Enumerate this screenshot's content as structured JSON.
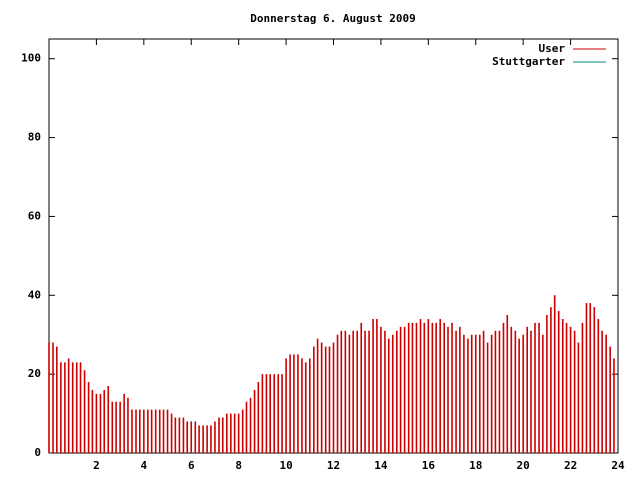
{
  "chart_data": {
    "type": "impulse",
    "title": "Donnerstag 6. August 2009",
    "x": [
      0,
      0.17,
      0.33,
      0.5,
      0.67,
      0.83,
      1,
      1.17,
      1.33,
      1.5,
      1.67,
      1.83,
      2,
      2.17,
      2.33,
      2.5,
      2.67,
      2.83,
      3,
      3.17,
      3.33,
      3.5,
      3.67,
      3.83,
      4,
      4.17,
      4.33,
      4.5,
      4.67,
      4.83,
      5,
      5.17,
      5.33,
      5.5,
      5.67,
      5.83,
      6,
      6.17,
      6.33,
      6.5,
      6.67,
      6.83,
      7,
      7.17,
      7.33,
      7.5,
      7.67,
      7.83,
      8,
      8.17,
      8.33,
      8.5,
      8.67,
      8.83,
      9,
      9.17,
      9.33,
      9.5,
      9.67,
      9.83,
      10,
      10.17,
      10.33,
      10.5,
      10.67,
      10.83,
      11,
      11.17,
      11.33,
      11.5,
      11.67,
      11.83,
      12,
      12.17,
      12.33,
      12.5,
      12.67,
      12.83,
      13,
      13.17,
      13.33,
      13.5,
      13.67,
      13.83,
      14,
      14.17,
      14.33,
      14.5,
      14.67,
      14.83,
      15,
      15.17,
      15.33,
      15.5,
      15.67,
      15.83,
      16,
      16.17,
      16.33,
      16.5,
      16.67,
      16.83,
      17,
      17.17,
      17.33,
      17.5,
      17.67,
      17.83,
      18,
      18.17,
      18.33,
      18.5,
      18.67,
      18.83,
      19,
      19.17,
      19.33,
      19.5,
      19.67,
      19.83,
      20,
      20.17,
      20.33,
      20.5,
      20.67,
      20.83,
      21,
      21.17,
      21.33,
      21.5,
      21.67,
      21.83,
      22,
      22.17,
      22.33,
      22.5,
      22.67,
      22.83,
      23,
      23.17,
      23.33,
      23.5,
      23.67,
      23.83
    ],
    "series": [
      {
        "name": "User",
        "color": "#cc0000",
        "values": [
          28,
          28,
          27,
          23,
          23,
          24,
          23,
          23,
          23,
          21,
          18,
          16,
          15,
          15,
          16,
          17,
          13,
          13,
          13,
          15,
          14,
          11,
          11,
          11,
          11,
          11,
          11,
          11,
          11,
          11,
          11,
          10,
          9,
          9,
          9,
          8,
          8,
          8,
          7,
          7,
          7,
          7,
          8,
          9,
          9,
          10,
          10,
          10,
          10,
          11,
          13,
          14,
          16,
          18,
          20,
          20,
          20,
          20,
          20,
          20,
          24,
          25,
          25,
          25,
          24,
          23,
          24,
          27,
          29,
          28,
          27,
          27,
          28,
          30,
          31,
          31,
          30,
          31,
          31,
          33,
          31,
          31,
          34,
          34,
          32,
          31,
          29,
          30,
          31,
          32,
          32,
          33,
          33,
          33,
          34,
          33,
          34,
          33,
          33,
          34,
          33,
          32,
          33,
          31,
          32,
          30,
          29,
          30,
          30,
          30,
          31,
          28,
          30,
          31,
          31,
          33,
          35,
          32,
          31,
          29,
          30,
          32,
          31,
          33,
          33,
          30,
          35,
          37,
          40,
          36,
          34,
          33,
          32,
          31,
          28,
          33,
          38,
          38,
          37,
          34,
          31,
          30,
          27,
          24
        ]
      },
      {
        "name": "Stuttgarter",
        "color": "#008b8b",
        "values": [
          null,
          null,
          null,
          null,
          null,
          null,
          null,
          null,
          null,
          null,
          null,
          null,
          null,
          null,
          null,
          null,
          null,
          null,
          null,
          null,
          null,
          null,
          null,
          null,
          null,
          null,
          null,
          null,
          null,
          null,
          null,
          null,
          null,
          null,
          null,
          null,
          null,
          null,
          null,
          null,
          null,
          null,
          null,
          null,
          null,
          null,
          null,
          null,
          null,
          null,
          null,
          null,
          null,
          null,
          null,
          null,
          null,
          null,
          null,
          null,
          null,
          null,
          null,
          null,
          null,
          null,
          null,
          null,
          null,
          null,
          null,
          null,
          null,
          null,
          null,
          null,
          null,
          null,
          null,
          null,
          null,
          null,
          null,
          null,
          null,
          null,
          null,
          null,
          null,
          null,
          null,
          null,
          null,
          null,
          null,
          null,
          null,
          null,
          null,
          null,
          null,
          null,
          null,
          null,
          null,
          null,
          null,
          null,
          null,
          null,
          null,
          null,
          null,
          null,
          null,
          null,
          null,
          null,
          null,
          null,
          null,
          null,
          null,
          null,
          null,
          null,
          null,
          null,
          null,
          null,
          null,
          null,
          null,
          null,
          null,
          null,
          null,
          null,
          null,
          null,
          null,
          null,
          null,
          null
        ]
      }
    ],
    "xlim": [
      0,
      24
    ],
    "xticks": [
      2,
      4,
      6,
      8,
      10,
      12,
      14,
      16,
      18,
      20,
      22,
      24
    ],
    "ylim": [
      0,
      105
    ],
    "yticks": [
      0,
      20,
      40,
      60,
      80,
      100
    ],
    "legend": "top-right"
  }
}
